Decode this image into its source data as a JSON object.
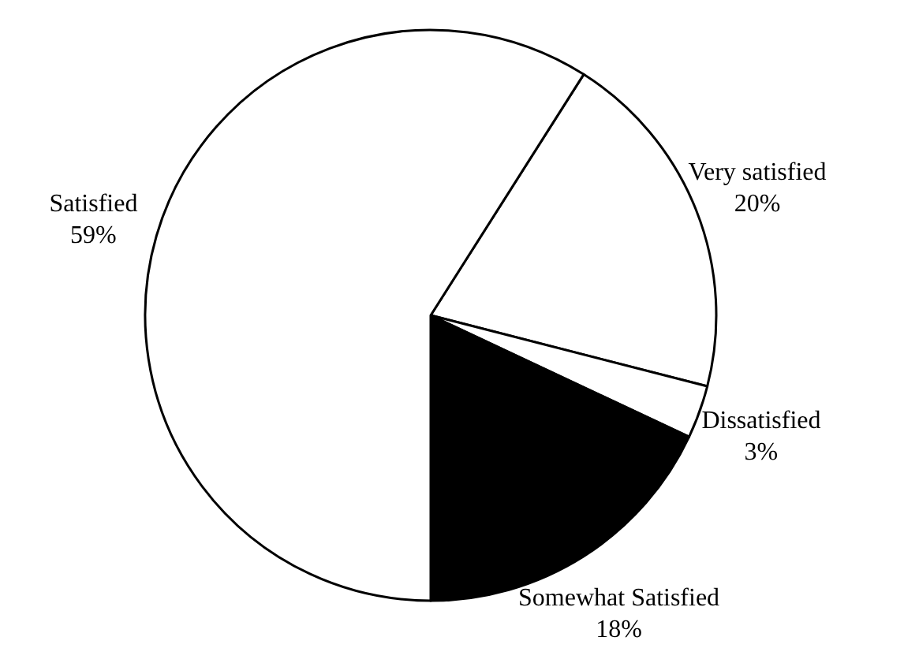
{
  "chart_data": {
    "type": "pie",
    "categories": [
      "Very satisfied",
      "Dissatisfied",
      "Somewhat Satisfied",
      "Satisfied"
    ],
    "values": [
      20,
      3,
      18,
      59
    ],
    "colors": [
      "#ffffff",
      "#ffffff",
      "#000000",
      "#ffffff"
    ],
    "value_labels": [
      "20%",
      "3%",
      "18%",
      "59%"
    ]
  }
}
